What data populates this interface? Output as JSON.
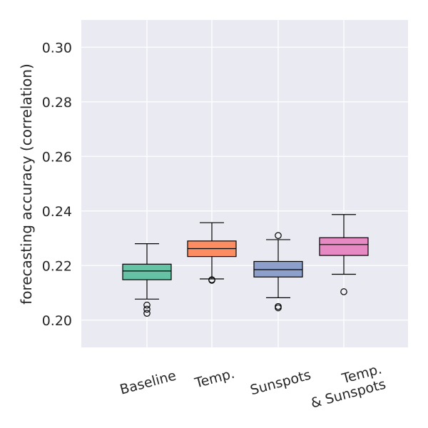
{
  "chart_data": {
    "type": "boxplot",
    "title": "",
    "xlabel": "",
    "ylabel": "forecasting accuracy (correlation)",
    "ylim": [
      0.19,
      0.31
    ],
    "yticks": [
      "0.20",
      "0.22",
      "0.24",
      "0.26",
      "0.28",
      "0.30"
    ],
    "grid": true,
    "categories": [
      {
        "label": [
          "Baseline"
        ],
        "color": "#66c2a5",
        "whisker_low": 0.2077,
        "q1": 0.2148,
        "median": 0.218,
        "q3": 0.2205,
        "whisker_high": 0.228,
        "outliers": [
          0.2025,
          0.204,
          0.2055
        ]
      },
      {
        "label": [
          "Temp."
        ],
        "color": "#fc8d62",
        "whisker_low": 0.2151,
        "q1": 0.2233,
        "median": 0.2262,
        "q3": 0.229,
        "whisker_high": 0.2357,
        "outliers": [
          0.2146,
          0.2148
        ]
      },
      {
        "label": [
          "Sunspots"
        ],
        "color": "#8da0cb",
        "whisker_low": 0.2082,
        "q1": 0.2158,
        "median": 0.2185,
        "q3": 0.2215,
        "whisker_high": 0.2295,
        "outliers": [
          0.2045,
          0.205,
          0.231
        ]
      },
      {
        "label": [
          "Temp.",
          "& Sunspots"
        ],
        "color": "#e78ac3",
        "whisker_low": 0.2168,
        "q1": 0.2237,
        "median": 0.2277,
        "q3": 0.2302,
        "whisker_high": 0.2387,
        "outliers": [
          0.2104
        ]
      }
    ]
  },
  "colors": {
    "plot_background": "#eaeaf2",
    "grid": "#ffffff",
    "box_edge": "#000000"
  }
}
